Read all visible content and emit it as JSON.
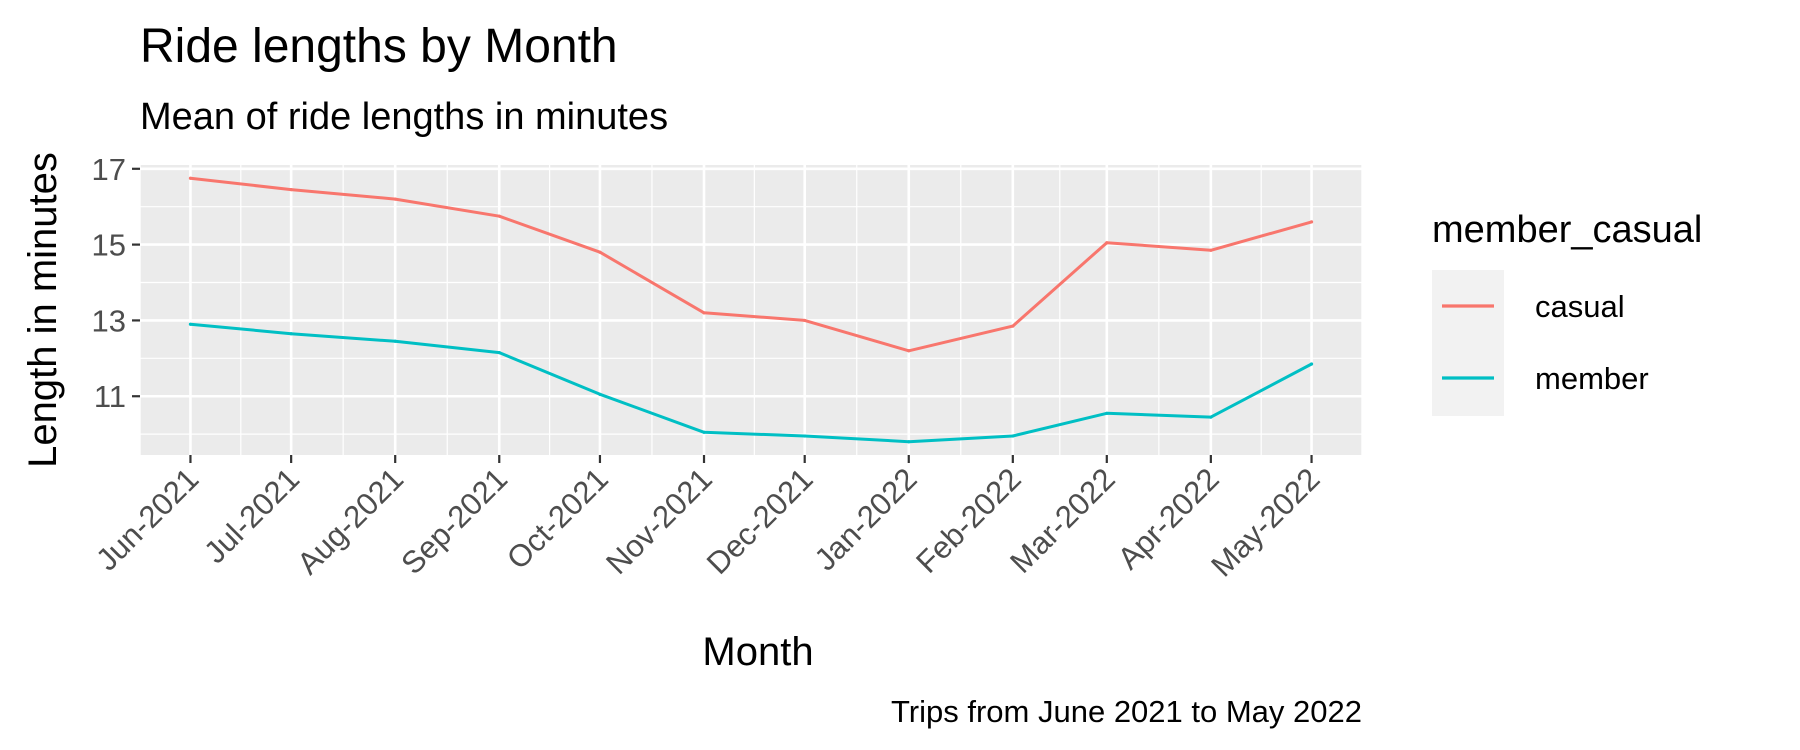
{
  "chart_data": {
    "type": "line",
    "title": "Ride lengths by Month",
    "subtitle": "Mean of ride lengths in minutes",
    "xlabel": "Month",
    "ylabel": "Length in minutes",
    "caption": "Trips from June 2021 to May 2022",
    "x": [
      "2021-06-01",
      "2021-07-01",
      "2021-08-01",
      "2021-09-01",
      "2021-10-01",
      "2021-11-01",
      "2021-12-01",
      "2022-01-01",
      "2022-02-01",
      "2022-03-01",
      "2022-04-01",
      "2022-05-01"
    ],
    "x_tick_labels": [
      "Jun-2021",
      "Jul-2021",
      "Aug-2021",
      "Sep-2021",
      "Oct-2021",
      "Nov-2021",
      "Dec-2021",
      "Jan-2022",
      "Feb-2022",
      "Mar-2022",
      "Apr-2022",
      "May-2022"
    ],
    "y_ticks": [
      11,
      13,
      15,
      17
    ],
    "ylim": [
      9.45,
      17.1
    ],
    "grid": true,
    "legend": {
      "title": "member_casual",
      "position": "right"
    },
    "series": [
      {
        "name": "casual",
        "color": "#F8766D",
        "values": [
          16.75,
          16.45,
          16.2,
          15.75,
          14.8,
          13.2,
          13.0,
          12.2,
          12.85,
          15.05,
          14.85,
          15.6
        ]
      },
      {
        "name": "member",
        "color": "#00BFC4",
        "values": [
          12.9,
          12.65,
          12.45,
          12.15,
          11.05,
          10.05,
          9.95,
          9.8,
          9.95,
          10.55,
          10.45,
          11.85
        ]
      }
    ]
  }
}
